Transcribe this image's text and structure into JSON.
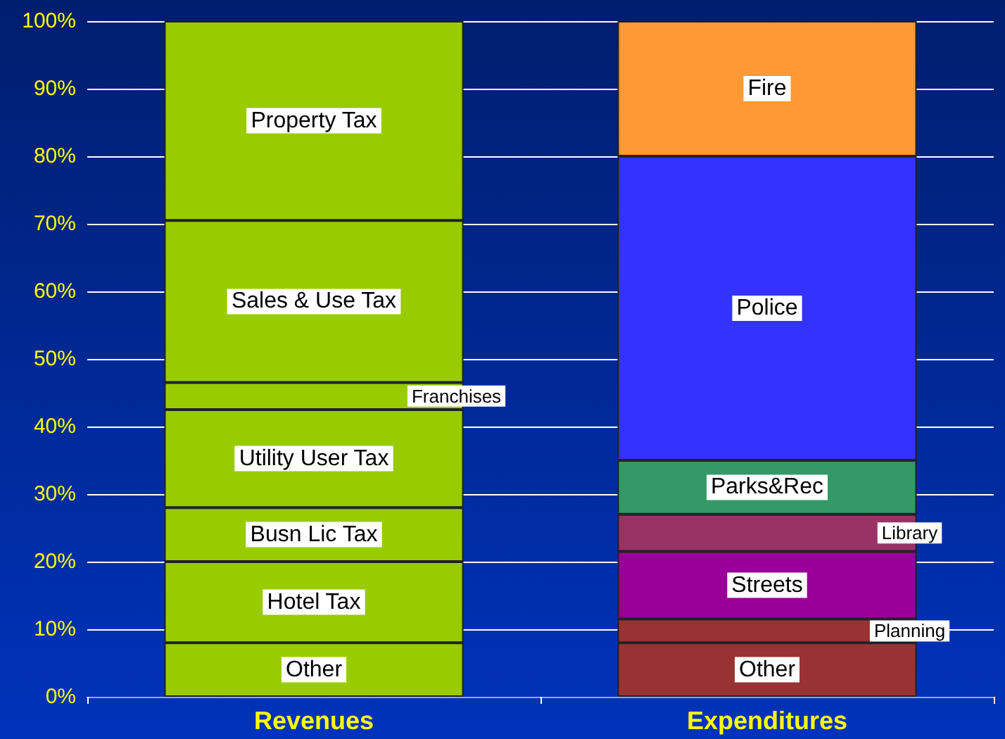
{
  "chart_data": {
    "type": "bar",
    "stacked": true,
    "categories": [
      "Revenues",
      "Expenditures"
    ],
    "series": [
      {
        "name": "Other",
        "color": "#99cc00",
        "values": [
          8,
          null
        ]
      },
      {
        "name": "Hotel Tax",
        "color": "#99cc00",
        "values": [
          12,
          null
        ]
      },
      {
        "name": "Busn Lic Tax",
        "color": "#99cc00",
        "values": [
          8,
          null
        ]
      },
      {
        "name": "Utility User Tax",
        "color": "#99cc00",
        "values": [
          14.5,
          null
        ]
      },
      {
        "name": "Franchises",
        "color": "#99cc00",
        "values": [
          4,
          null
        ]
      },
      {
        "name": "Sales & Use Tax",
        "color": "#99cc00",
        "values": [
          24,
          null
        ]
      },
      {
        "name": "Property Tax",
        "color": "#99cc00",
        "values": [
          29.5,
          null
        ]
      },
      {
        "name": "Other",
        "color": "#993333",
        "values": [
          null,
          8
        ]
      },
      {
        "name": "Planning",
        "color": "#993333",
        "values": [
          null,
          3.5
        ]
      },
      {
        "name": "Streets",
        "color": "#990099",
        "values": [
          null,
          10
        ]
      },
      {
        "name": "Library",
        "color": "#993366",
        "values": [
          null,
          5.5
        ]
      },
      {
        "name": "Parks&Rec",
        "color": "#339966",
        "values": [
          null,
          8
        ]
      },
      {
        "name": "Police",
        "color": "#3333ff",
        "values": [
          null,
          45
        ]
      },
      {
        "name": "Fire",
        "color": "#ff9933",
        "values": [
          null,
          20
        ]
      }
    ],
    "ylim": [
      0,
      100
    ],
    "yticks": [
      {
        "value": 0,
        "label": "0%"
      },
      {
        "value": 10,
        "label": "10%"
      },
      {
        "value": 20,
        "label": "20%"
      },
      {
        "value": 30,
        "label": "30%"
      },
      {
        "value": 40,
        "label": "40%"
      },
      {
        "value": 50,
        "label": "50%"
      },
      {
        "value": 60,
        "label": "60%"
      },
      {
        "value": 70,
        "label": "70%"
      },
      {
        "value": 80,
        "label": "80%"
      },
      {
        "value": 90,
        "label": "90%"
      },
      {
        "value": 100,
        "label": "100%"
      }
    ],
    "grid": true,
    "legend": false
  }
}
